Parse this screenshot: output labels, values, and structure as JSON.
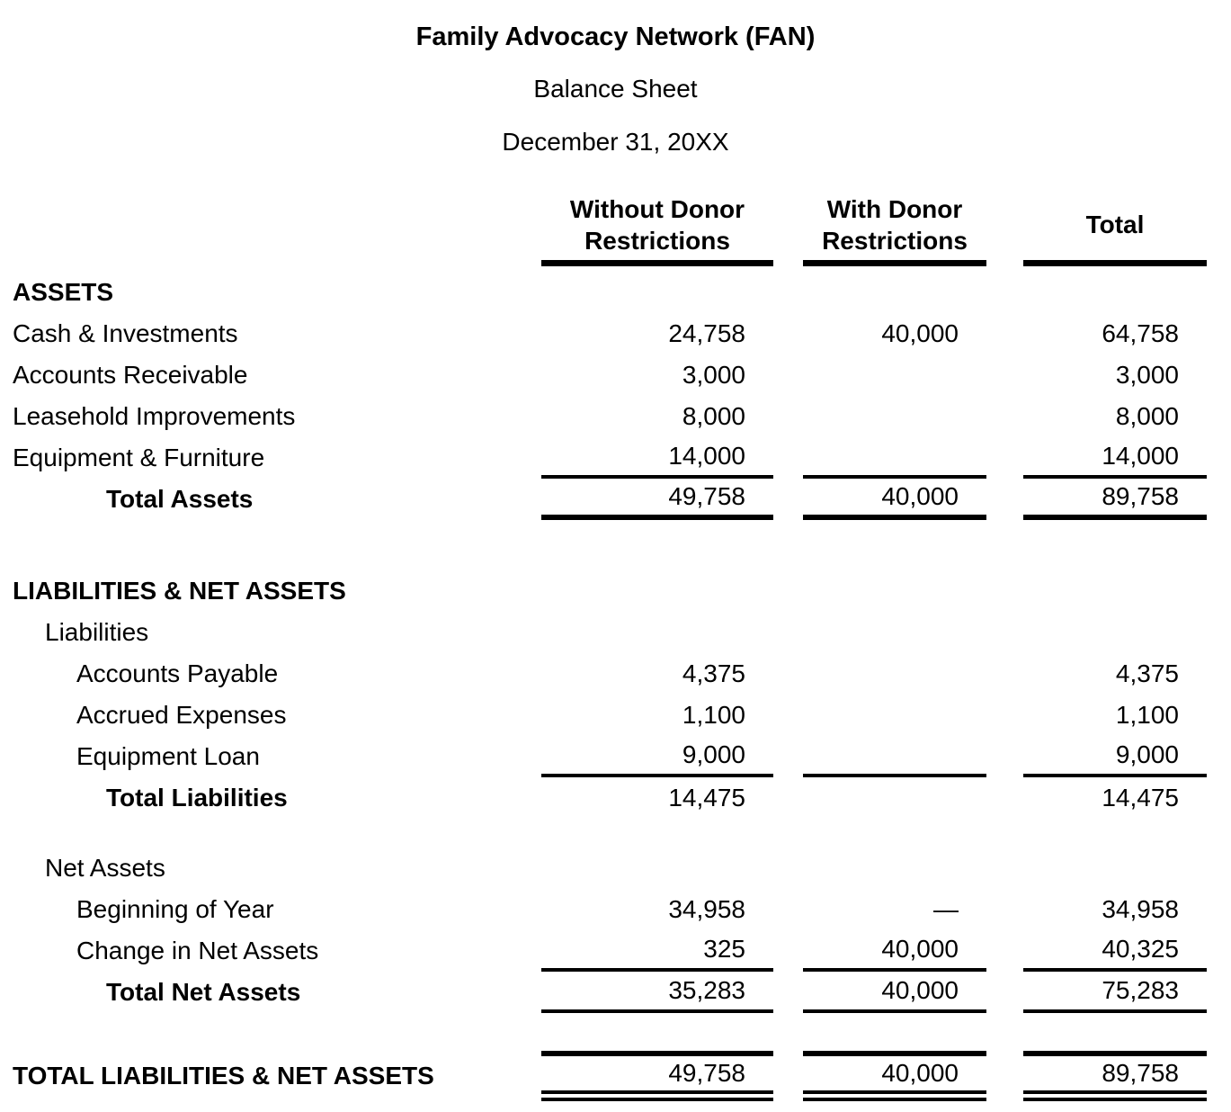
{
  "title": {
    "organization": "Family Advocacy Network (FAN)",
    "report": "Balance Sheet",
    "date": "December 31, 20XX"
  },
  "columns": {
    "without": "Without Donor Restrictions",
    "with": "With Donor Restrictions",
    "total": "Total"
  },
  "rows": [
    {
      "label": "ASSETS",
      "c1": "",
      "c2": "",
      "c3": ""
    },
    {
      "label": "Cash & Investments",
      "c1": "24,758",
      "c2": "40,000",
      "c3": "64,758"
    },
    {
      "label": "Accounts Receivable",
      "c1": "3,000",
      "c2": "",
      "c3": "3,000"
    },
    {
      "label": "Leasehold Improvements",
      "c1": "8,000",
      "c2": "",
      "c3": "8,000"
    },
    {
      "label": "Equipment & Furniture",
      "c1": "14,000",
      "c2": "",
      "c3": "14,000"
    },
    {
      "label": "Total Assets",
      "c1": "49,758",
      "c2": "40,000",
      "c3": "89,758"
    },
    {
      "label": "LIABILITIES & NET ASSETS",
      "c1": "",
      "c2": "",
      "c3": ""
    },
    {
      "label": "Liabilities",
      "c1": "",
      "c2": "",
      "c3": ""
    },
    {
      "label": "Accounts Payable",
      "c1": "4,375",
      "c2": "",
      "c3": "4,375"
    },
    {
      "label": "Accrued Expenses",
      "c1": "1,100",
      "c2": "",
      "c3": "1,100"
    },
    {
      "label": "Equipment Loan",
      "c1": "9,000",
      "c2": "",
      "c3": "9,000"
    },
    {
      "label": "Total Liabilities",
      "c1": "14,475",
      "c2": "",
      "c3": "14,475"
    },
    {
      "label": "Net Assets",
      "c1": "",
      "c2": "",
      "c3": ""
    },
    {
      "label": "Beginning of Year",
      "c1": "34,958",
      "c2": "—",
      "c3": "34,958"
    },
    {
      "label": "Change in Net Assets",
      "c1": "325",
      "c2": "40,000",
      "c3": "40,325"
    },
    {
      "label": "Total Net Assets",
      "c1": "35,283",
      "c2": "40,000",
      "c3": "75,283"
    },
    {
      "label": "TOTAL LIABILITIES & NET ASSETS",
      "c1": "49,758",
      "c2": "40,000",
      "c3": "89,758"
    }
  ]
}
